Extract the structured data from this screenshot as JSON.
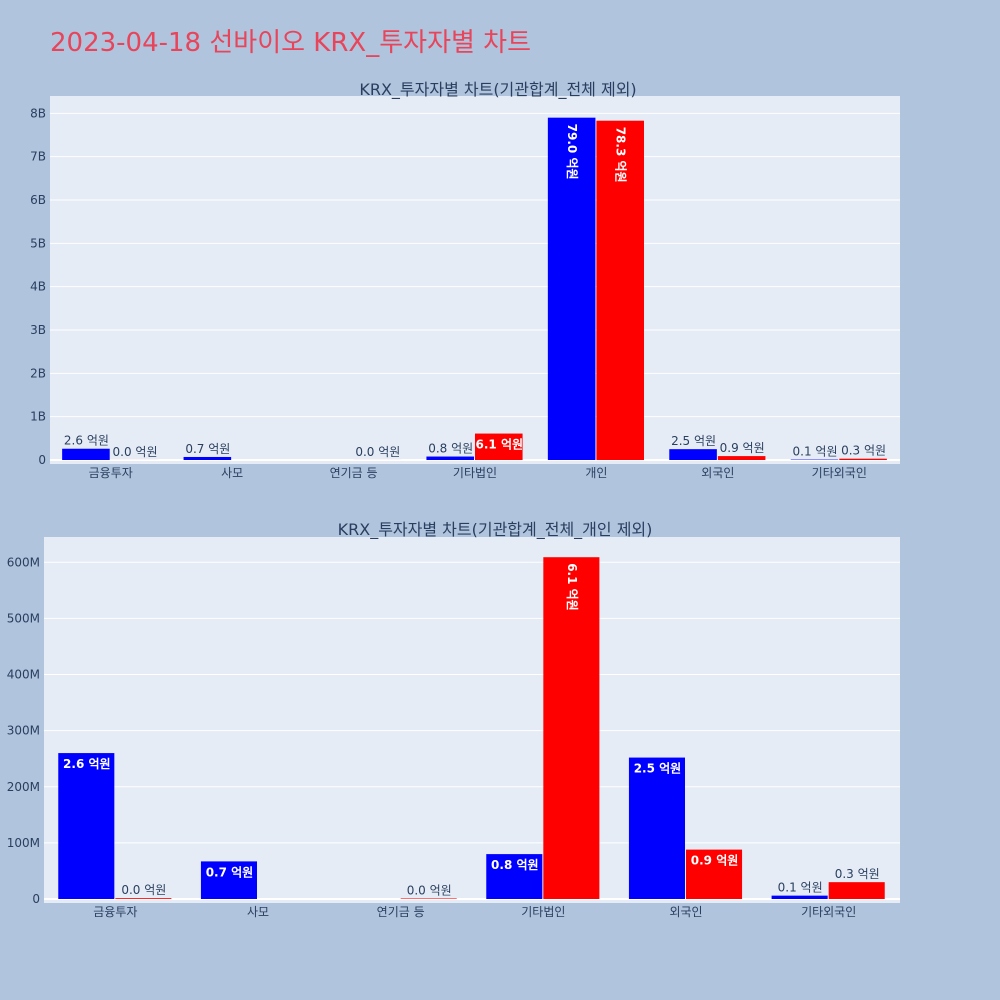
{
  "page": {
    "title": "2023-04-18 선바이오 KRX_투자자별 차트"
  },
  "colors": {
    "buy": "#0000ff",
    "sell": "#ff0000",
    "plot_bg": "#e5ecf6",
    "page_bg": "#b0c4de",
    "title": "#e8445a"
  },
  "chart_data": [
    {
      "type": "bar",
      "title": "KRX_투자자별 차트(기관합계_전체 제외)",
      "categories": [
        "금융투자",
        "사모",
        "연기금 등",
        "기타법인",
        "개인",
        "외국인",
        "기타외국인"
      ],
      "series": [
        {
          "values": [
            260000000,
            70000000,
            0,
            80000000,
            7900000000,
            250000000,
            10000000
          ],
          "labels": [
            "2.6 억원",
            "0.7 억원",
            "",
            "0.8 억원",
            "79.0 억원",
            "2.5 억원",
            "0.1 억원"
          ]
        },
        {
          "values": [
            1000000,
            0,
            1000000,
            610000000,
            7830000000,
            90000000,
            30000000
          ],
          "labels": [
            "0.0 억원",
            "",
            "0.0 억원",
            "6.1 억원",
            "78.3 억원",
            "0.9 억원",
            "0.3 억원"
          ]
        }
      ],
      "ylim": [
        0,
        8400000000
      ],
      "yticks": [
        0,
        1000000000,
        2000000000,
        3000000000,
        4000000000,
        5000000000,
        6000000000,
        7000000000,
        8000000000
      ],
      "ytick_labels": [
        "0",
        "1B",
        "2B",
        "3B",
        "4B",
        "5B",
        "6B",
        "7B",
        "8B"
      ],
      "grid": true
    },
    {
      "type": "bar",
      "title": "KRX_투자자별 차트(기관합계_전체_개인 제외)",
      "categories": [
        "금융투자",
        "사모",
        "연기금 등",
        "기타법인",
        "외국인",
        "기타외국인"
      ],
      "series": [
        {
          "values": [
            260000000,
            67000000,
            0,
            80000000,
            252000000,
            6000000
          ],
          "labels": [
            "2.6 억원",
            "0.7 억원",
            "",
            "0.8 억원",
            "2.5 억원",
            "0.1 억원"
          ]
        },
        {
          "values": [
            1500000,
            0,
            1000000,
            609000000,
            88000000,
            30000000
          ],
          "labels": [
            "0.0 억원",
            "",
            "0.0 억원",
            "6.1 억원",
            "0.9 억원",
            "0.3 억원"
          ]
        }
      ],
      "ylim": [
        0,
        645000000
      ],
      "yticks": [
        0,
        100000000,
        200000000,
        300000000,
        400000000,
        500000000,
        600000000
      ],
      "ytick_labels": [
        "0",
        "100M",
        "200M",
        "300M",
        "400M",
        "500M",
        "600M"
      ],
      "grid": true
    }
  ]
}
